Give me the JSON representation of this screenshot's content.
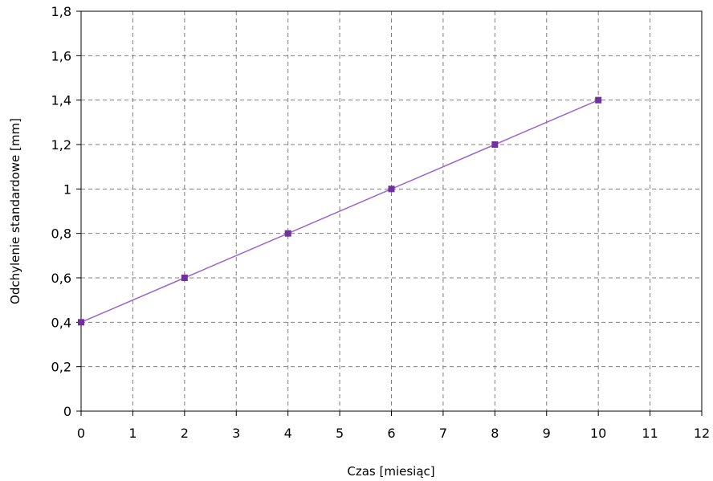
{
  "chart_data": {
    "type": "line",
    "title": "",
    "xlabel": "Czas [miesiąc]",
    "ylabel": "Odchylenie standardowe [mm]",
    "xlim": [
      0,
      12
    ],
    "ylim": [
      0,
      1.8
    ],
    "x_ticks": [
      "0",
      "1",
      "2",
      "3",
      "4",
      "5",
      "6",
      "7",
      "8",
      "9",
      "10",
      "11",
      "12"
    ],
    "y_ticks": [
      "0",
      "0,2",
      "0,4",
      "0,6",
      "0,8",
      "1",
      "1,2",
      "1,4",
      "1,6",
      "1,8"
    ],
    "grid": true,
    "series": [
      {
        "color": "#7030A0",
        "marker": "square",
        "x": [
          0,
          2,
          4,
          6,
          8,
          10
        ],
        "y": [
          0.4,
          0.6,
          0.8,
          1.0,
          1.2,
          1.4
        ]
      }
    ]
  }
}
